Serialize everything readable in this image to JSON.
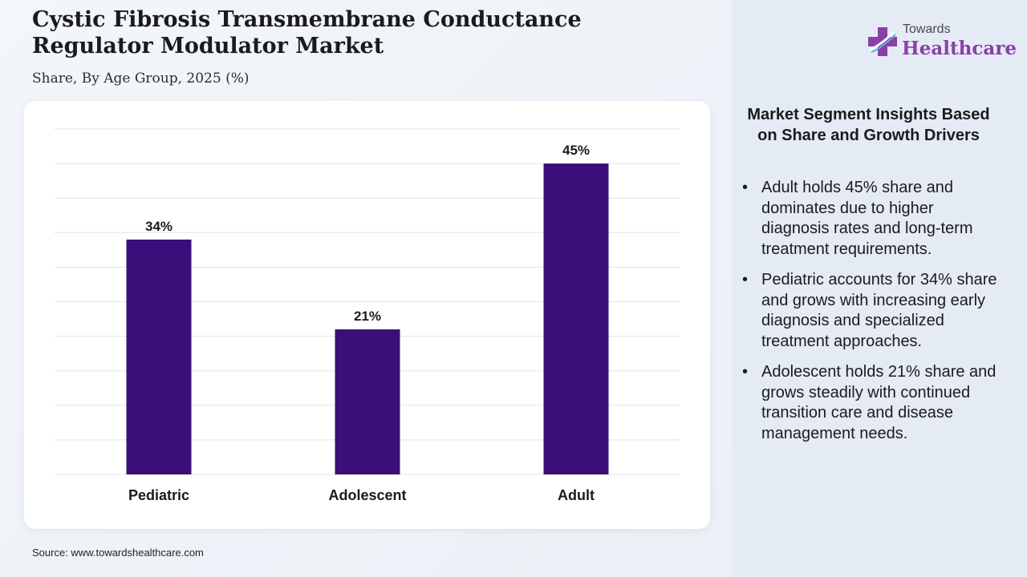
{
  "title": "Cystic Fibrosis Transmembrane Conductance Regulator Modulator Market",
  "subtitle": "Share, By Age Group, 2025 (%)",
  "source": "Source: www.towardshealthcare.com",
  "logo": {
    "small": "Towards",
    "big": "Healthcare"
  },
  "insights": {
    "title": "Market Segment Insights Based on Share and Growth Drivers",
    "bullet": "•",
    "items": [
      "Adult holds 45% share and dominates due to higher diagnosis rates and long-term treatment requirements.",
      "Pediatric accounts for 34% share and grows with increasing early diagnosis and specialized treatment approaches.",
      "Adolescent holds 21% share and grows steadily with continued transition care and disease management needs."
    ]
  },
  "colors": {
    "bar": "#3b0f7a",
    "grid": "#e3e3e3",
    "logo_accent": "#8b3fa8"
  },
  "chart_data": {
    "type": "bar",
    "categories": [
      "Pediatric",
      "Adolescent",
      "Adult"
    ],
    "values": [
      34,
      21,
      45
    ],
    "data_labels": [
      "34%",
      "21%",
      "45%"
    ],
    "ylim": [
      0,
      50
    ],
    "grid": true,
    "title": "",
    "xlabel": "",
    "ylabel": ""
  }
}
